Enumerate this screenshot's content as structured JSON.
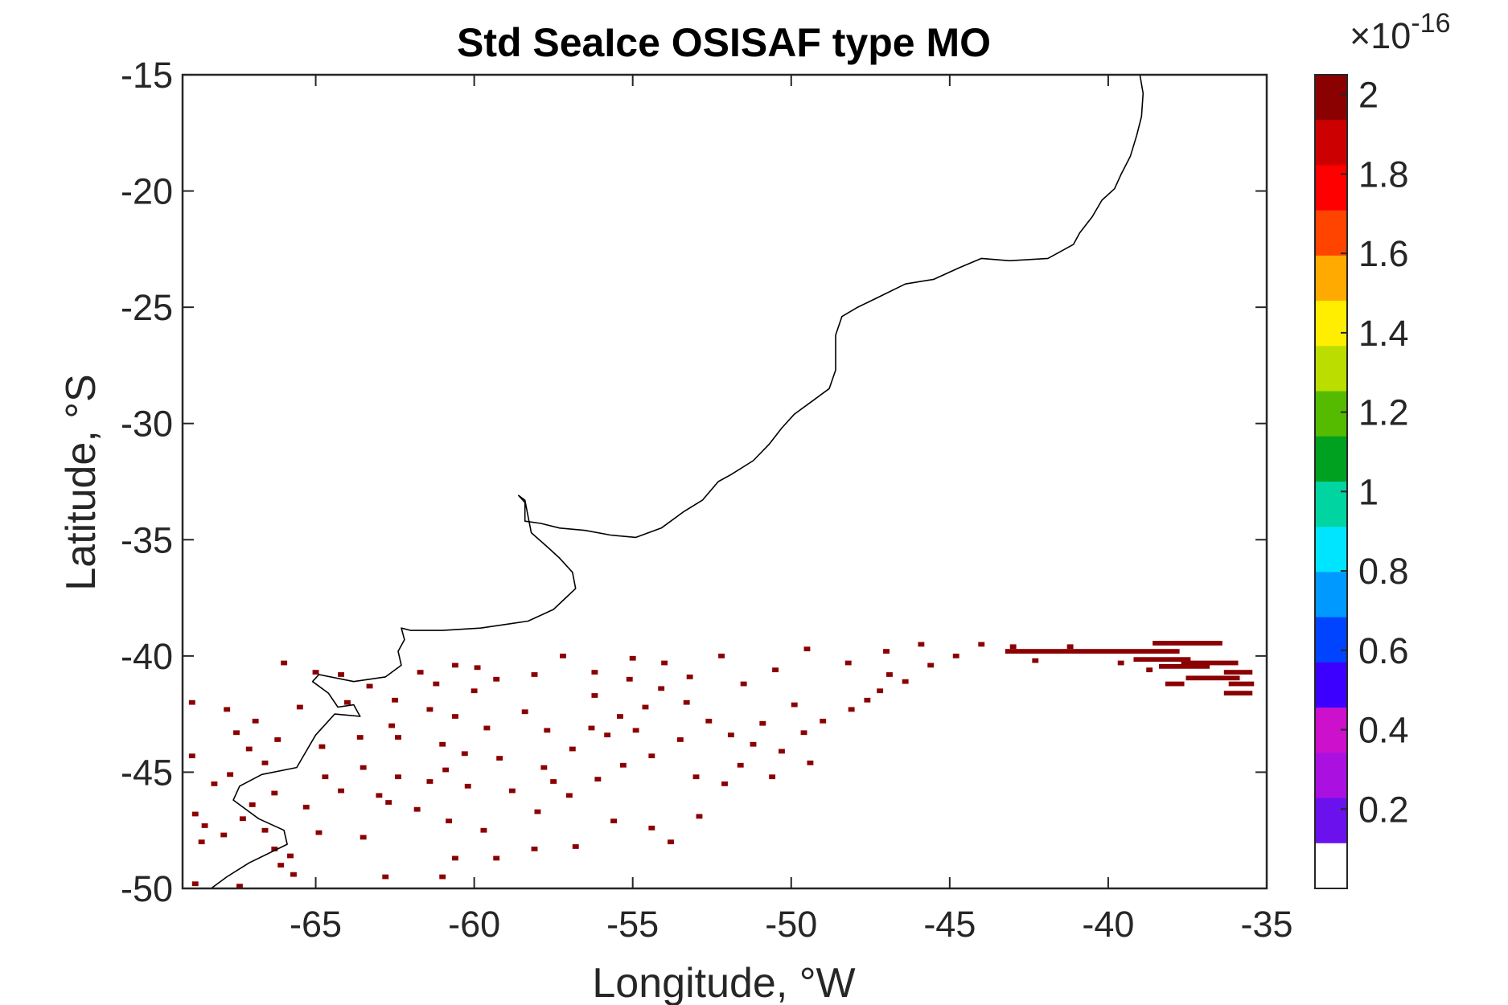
{
  "chart_data": {
    "type": "heatmap",
    "title": "Std SeaIce OSISAF type MO",
    "xlabel": "Longitude, °W",
    "ylabel": "Latitude, °S",
    "xlim": [
      -69.2,
      -35
    ],
    "ylim": [
      -50,
      -15
    ],
    "x_ticks": [
      -65,
      -60,
      -55,
      -50,
      -45,
      -40,
      -35
    ],
    "y_ticks": [
      -15,
      -20,
      -25,
      -30,
      -35,
      -40,
      -45,
      -50
    ],
    "x_tick_labels": [
      "-65",
      "-60",
      "-55",
      "-50",
      "-45",
      "-40",
      "-35"
    ],
    "y_tick_labels": [
      "-15",
      "-20",
      "-25",
      "-30",
      "-35",
      "-40",
      "-45",
      "-50"
    ],
    "grid": false,
    "colorbar": {
      "min": 0,
      "max": 2.05,
      "ticks": [
        0.2,
        0.4,
        0.6,
        0.8,
        1,
        1.2,
        1.4,
        1.6,
        1.8,
        2
      ],
      "tick_labels": [
        "0.2",
        "0.4",
        "0.6",
        "0.8",
        "1",
        "1.2",
        "1.4",
        "1.6",
        "1.8",
        "2"
      ],
      "multiplier_base": "×10",
      "multiplier_exponent": "-16",
      "colormap": [
        "#ffffff",
        "#6a11ee",
        "#aa10e0",
        "#cc10cc",
        "#3b00ff",
        "#0044ff",
        "#0099ff",
        "#00e5ff",
        "#00d4a0",
        "#00a020",
        "#55bb00",
        "#bbdd00",
        "#ffee00",
        "#ffaa00",
        "#ff4400",
        "#ff0000",
        "#cc0000",
        "#8b0000"
      ]
    },
    "pixel_value": 2.05,
    "pixel_color": "#8b0000",
    "coastline": [
      [
        -39.0,
        -15.0
      ],
      [
        -38.9,
        -15.8
      ],
      [
        -38.95,
        -16.8
      ],
      [
        -39.1,
        -17.6
      ],
      [
        -39.3,
        -18.5
      ],
      [
        -39.6,
        -19.3
      ],
      [
        -39.8,
        -19.9
      ],
      [
        -40.2,
        -20.4
      ],
      [
        -40.5,
        -21.1
      ],
      [
        -40.9,
        -21.8
      ],
      [
        -41.1,
        -22.3
      ],
      [
        -41.9,
        -22.9
      ],
      [
        -43.1,
        -23.0
      ],
      [
        -44.0,
        -22.9
      ],
      [
        -44.7,
        -23.3
      ],
      [
        -45.5,
        -23.8
      ],
      [
        -46.4,
        -24.0
      ],
      [
        -47.3,
        -24.6
      ],
      [
        -47.9,
        -25.0
      ],
      [
        -48.4,
        -25.4
      ],
      [
        -48.6,
        -26.2
      ],
      [
        -48.6,
        -27.0
      ],
      [
        -48.6,
        -27.7
      ],
      [
        -48.8,
        -28.5
      ],
      [
        -49.3,
        -29.0
      ],
      [
        -49.9,
        -29.6
      ],
      [
        -50.3,
        -30.2
      ],
      [
        -50.7,
        -30.9
      ],
      [
        -51.2,
        -31.6
      ],
      [
        -51.9,
        -32.2
      ],
      [
        -52.3,
        -32.5
      ],
      [
        -52.8,
        -33.3
      ],
      [
        -53.4,
        -33.8
      ],
      [
        -54.1,
        -34.5
      ],
      [
        -54.9,
        -34.9
      ],
      [
        -55.7,
        -34.8
      ],
      [
        -56.5,
        -34.6
      ],
      [
        -57.3,
        -34.5
      ],
      [
        -57.9,
        -34.3
      ],
      [
        -58.4,
        -34.2
      ],
      [
        -58.4,
        -33.4
      ],
      [
        -58.6,
        -33.1
      ],
      [
        -58.4,
        -33.3
      ],
      [
        -58.3,
        -34.0
      ],
      [
        -58.2,
        -34.7
      ],
      [
        -57.7,
        -35.3
      ],
      [
        -57.3,
        -35.8
      ],
      [
        -56.9,
        -36.4
      ],
      [
        -56.8,
        -37.1
      ],
      [
        -57.5,
        -38.0
      ],
      [
        -58.3,
        -38.5
      ],
      [
        -59.8,
        -38.8
      ],
      [
        -61.0,
        -38.9
      ],
      [
        -62.0,
        -38.9
      ],
      [
        -62.3,
        -38.8
      ],
      [
        -62.2,
        -39.3
      ],
      [
        -62.4,
        -39.8
      ],
      [
        -62.3,
        -40.4
      ],
      [
        -62.8,
        -40.9
      ],
      [
        -63.8,
        -41.1
      ],
      [
        -64.9,
        -40.8
      ],
      [
        -65.1,
        -41.1
      ],
      [
        -64.6,
        -41.6
      ],
      [
        -64.3,
        -42.2
      ],
      [
        -63.8,
        -42.1
      ],
      [
        -63.6,
        -42.6
      ],
      [
        -64.4,
        -42.5
      ],
      [
        -64.6,
        -42.8
      ],
      [
        -65.0,
        -43.4
      ],
      [
        -65.3,
        -44.1
      ],
      [
        -65.6,
        -44.8
      ],
      [
        -66.7,
        -45.1
      ],
      [
        -67.4,
        -45.6
      ],
      [
        -67.6,
        -46.2
      ],
      [
        -66.8,
        -47.0
      ],
      [
        -66.0,
        -47.5
      ],
      [
        -65.9,
        -48.1
      ],
      [
        -67.1,
        -48.9
      ],
      [
        -67.8,
        -49.5
      ],
      [
        -68.3,
        -50.0
      ]
    ],
    "ice_runs": [
      [
        -37.5,
        -39.45,
        2.2
      ],
      [
        -40.5,
        -39.8,
        5.5
      ],
      [
        -38.3,
        -40.15,
        1.8
      ],
      [
        -36.8,
        -40.3,
        1.8
      ],
      [
        -37.6,
        -40.45,
        1.6
      ],
      [
        -35.9,
        -40.7,
        0.9
      ],
      [
        -36.7,
        -40.95,
        1.7
      ],
      [
        -35.8,
        -41.2,
        0.8
      ],
      [
        -37.9,
        -41.2,
        0.6
      ],
      [
        -35.9,
        -41.6,
        0.9
      ]
    ],
    "ice_cells": [
      [
        -68.9,
        -42.0
      ],
      [
        -67.8,
        -42.3
      ],
      [
        -66.9,
        -42.8
      ],
      [
        -67.5,
        -43.3
      ],
      [
        -66.2,
        -43.6
      ],
      [
        -67.1,
        -44.0
      ],
      [
        -68.9,
        -44.3
      ],
      [
        -66.6,
        -44.6
      ],
      [
        -67.7,
        -45.1
      ],
      [
        -68.2,
        -45.5
      ],
      [
        -66.3,
        -45.9
      ],
      [
        -67.0,
        -46.4
      ],
      [
        -68.8,
        -46.8
      ],
      [
        -67.3,
        -47.0
      ],
      [
        -68.5,
        -47.3
      ],
      [
        -66.6,
        -47.5
      ],
      [
        -67.9,
        -47.7
      ],
      [
        -68.6,
        -48.0
      ],
      [
        -66.3,
        -48.3
      ],
      [
        -65.8,
        -48.6
      ],
      [
        -66.1,
        -49.0
      ],
      [
        -65.7,
        -49.4
      ],
      [
        -68.8,
        -49.8
      ],
      [
        -67.4,
        -49.9
      ],
      [
        -66.0,
        -40.3
      ],
      [
        -65.0,
        -40.7
      ],
      [
        -64.2,
        -40.8
      ],
      [
        -63.3,
        -41.3
      ],
      [
        -65.5,
        -42.2
      ],
      [
        -64.0,
        -42.0
      ],
      [
        -61.7,
        -40.7
      ],
      [
        -61.2,
        -41.2
      ],
      [
        -60.6,
        -40.4
      ],
      [
        -59.9,
        -40.5
      ],
      [
        -59.3,
        -41.0
      ],
      [
        -60.0,
        -41.5
      ],
      [
        -62.5,
        -41.9
      ],
      [
        -61.4,
        -42.3
      ],
      [
        -60.6,
        -42.6
      ],
      [
        -59.6,
        -43.1
      ],
      [
        -62.4,
        -43.5
      ],
      [
        -61.0,
        -43.8
      ],
      [
        -60.3,
        -44.2
      ],
      [
        -59.2,
        -44.4
      ],
      [
        -63.5,
        -44.8
      ],
      [
        -62.4,
        -45.2
      ],
      [
        -61.4,
        -45.4
      ],
      [
        -60.2,
        -45.6
      ],
      [
        -64.2,
        -45.8
      ],
      [
        -63.0,
        -46.0
      ],
      [
        -62.7,
        -46.3
      ],
      [
        -61.8,
        -46.6
      ],
      [
        -60.8,
        -47.1
      ],
      [
        -59.7,
        -47.5
      ],
      [
        -58.8,
        -45.8
      ],
      [
        -57.8,
        -44.8
      ],
      [
        -56.9,
        -44.0
      ],
      [
        -56.3,
        -43.1
      ],
      [
        -55.4,
        -42.6
      ],
      [
        -54.6,
        -42.2
      ],
      [
        -58.4,
        -42.4
      ],
      [
        -57.7,
        -43.2
      ],
      [
        -56.2,
        -41.7
      ],
      [
        -55.1,
        -41.0
      ],
      [
        -54.1,
        -41.4
      ],
      [
        -53.3,
        -42.0
      ],
      [
        -52.6,
        -42.8
      ],
      [
        -51.9,
        -43.4
      ],
      [
        -51.2,
        -43.8
      ],
      [
        -50.3,
        -44.1
      ],
      [
        -49.6,
        -43.3
      ],
      [
        -49.0,
        -42.8
      ],
      [
        -48.1,
        -42.3
      ],
      [
        -47.2,
        -41.5
      ],
      [
        -46.4,
        -41.1
      ],
      [
        -45.6,
        -40.4
      ],
      [
        -44.8,
        -40.0
      ],
      [
        -44.0,
        -39.5
      ],
      [
        -43.0,
        -39.6
      ],
      [
        -45.9,
        -39.5
      ],
      [
        -47.0,
        -39.8
      ],
      [
        -48.2,
        -40.3
      ],
      [
        -49.5,
        -39.7
      ],
      [
        -50.5,
        -40.6
      ],
      [
        -51.5,
        -41.2
      ],
      [
        -52.2,
        -40.0
      ],
      [
        -53.2,
        -40.9
      ],
      [
        -54.0,
        -40.3
      ],
      [
        -55.0,
        -40.1
      ],
      [
        -56.2,
        -40.7
      ],
      [
        -57.2,
        -40.0
      ],
      [
        -58.1,
        -40.8
      ],
      [
        -53.5,
        -43.6
      ],
      [
        -54.4,
        -44.3
      ],
      [
        -55.3,
        -44.7
      ],
      [
        -56.1,
        -45.3
      ],
      [
        -57.0,
        -46.0
      ],
      [
        -58.0,
        -46.7
      ],
      [
        -55.6,
        -47.1
      ],
      [
        -54.4,
        -47.4
      ],
      [
        -53.8,
        -48.0
      ],
      [
        -52.9,
        -46.9
      ],
      [
        -52.1,
        -45.5
      ],
      [
        -51.6,
        -44.7
      ],
      [
        -50.6,
        -45.2
      ],
      [
        -49.4,
        -44.6
      ],
      [
        -56.8,
        -48.2
      ],
      [
        -58.1,
        -48.3
      ],
      [
        -59.3,
        -48.7
      ],
      [
        -61.0,
        -49.5
      ],
      [
        -62.8,
        -49.5
      ],
      [
        -60.6,
        -48.7
      ],
      [
        -63.5,
        -47.8
      ],
      [
        -64.9,
        -47.6
      ],
      [
        -65.3,
        -46.5
      ],
      [
        -64.7,
        -45.2
      ],
      [
        -63.6,
        -43.5
      ],
      [
        -62.6,
        -43.0
      ],
      [
        -64.8,
        -43.9
      ],
      [
        -60.9,
        -44.9
      ],
      [
        -50.9,
        -42.9
      ],
      [
        -49.9,
        -42.1
      ],
      [
        -47.6,
        -41.9
      ],
      [
        -46.9,
        -40.8
      ],
      [
        -42.3,
        -40.2
      ],
      [
        -41.2,
        -39.6
      ],
      [
        -39.6,
        -40.3
      ],
      [
        -38.7,
        -40.6
      ],
      [
        -53.0,
        -45.2
      ],
      [
        -57.5,
        -45.4
      ],
      [
        -55.8,
        -43.4
      ],
      [
        -54.9,
        -43.2
      ]
    ]
  }
}
